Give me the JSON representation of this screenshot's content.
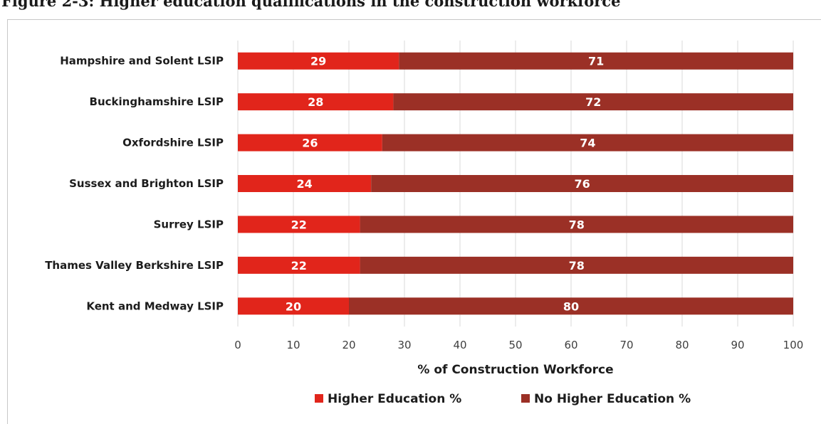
{
  "figure": {
    "caption": "Figure 2-3: Higher education qualifications in the construction workforce"
  },
  "chart_data": {
    "type": "bar",
    "orientation": "horizontal",
    "stacked": true,
    "categories": [
      "Hampshire and Solent LSIP",
      "Buckinghamshire LSIP",
      "Oxfordshire LSIP",
      "Sussex and Brighton LSIP",
      "Surrey LSIP",
      "Thames Valley Berkshire LSIP",
      "Kent and Medway LSIP"
    ],
    "series": [
      {
        "name": "Higher Education %",
        "color": "#e1251b",
        "values": [
          29,
          28,
          26,
          24,
          22,
          22,
          20
        ],
        "labels": [
          "29",
          "28",
          "26",
          "24",
          "22",
          "22",
          "20"
        ]
      },
      {
        "name": "No Higher Education %",
        "color": "#9b3026",
        "values": [
          71,
          72,
          74,
          76,
          78,
          78,
          80
        ],
        "labels": [
          "71",
          "72",
          "74",
          "76",
          "78",
          "78",
          "80"
        ]
      }
    ],
    "title": "",
    "xlabel": "% of Construction Workforce",
    "ylabel": "",
    "xlim": [
      0,
      100
    ],
    "xticks": [
      "0",
      "10",
      "20",
      "30",
      "40",
      "50",
      "60",
      "70",
      "80",
      "90",
      "100"
    ],
    "grid": "vertical",
    "gridColor": "#d9d9d9",
    "legend": "bottom"
  }
}
